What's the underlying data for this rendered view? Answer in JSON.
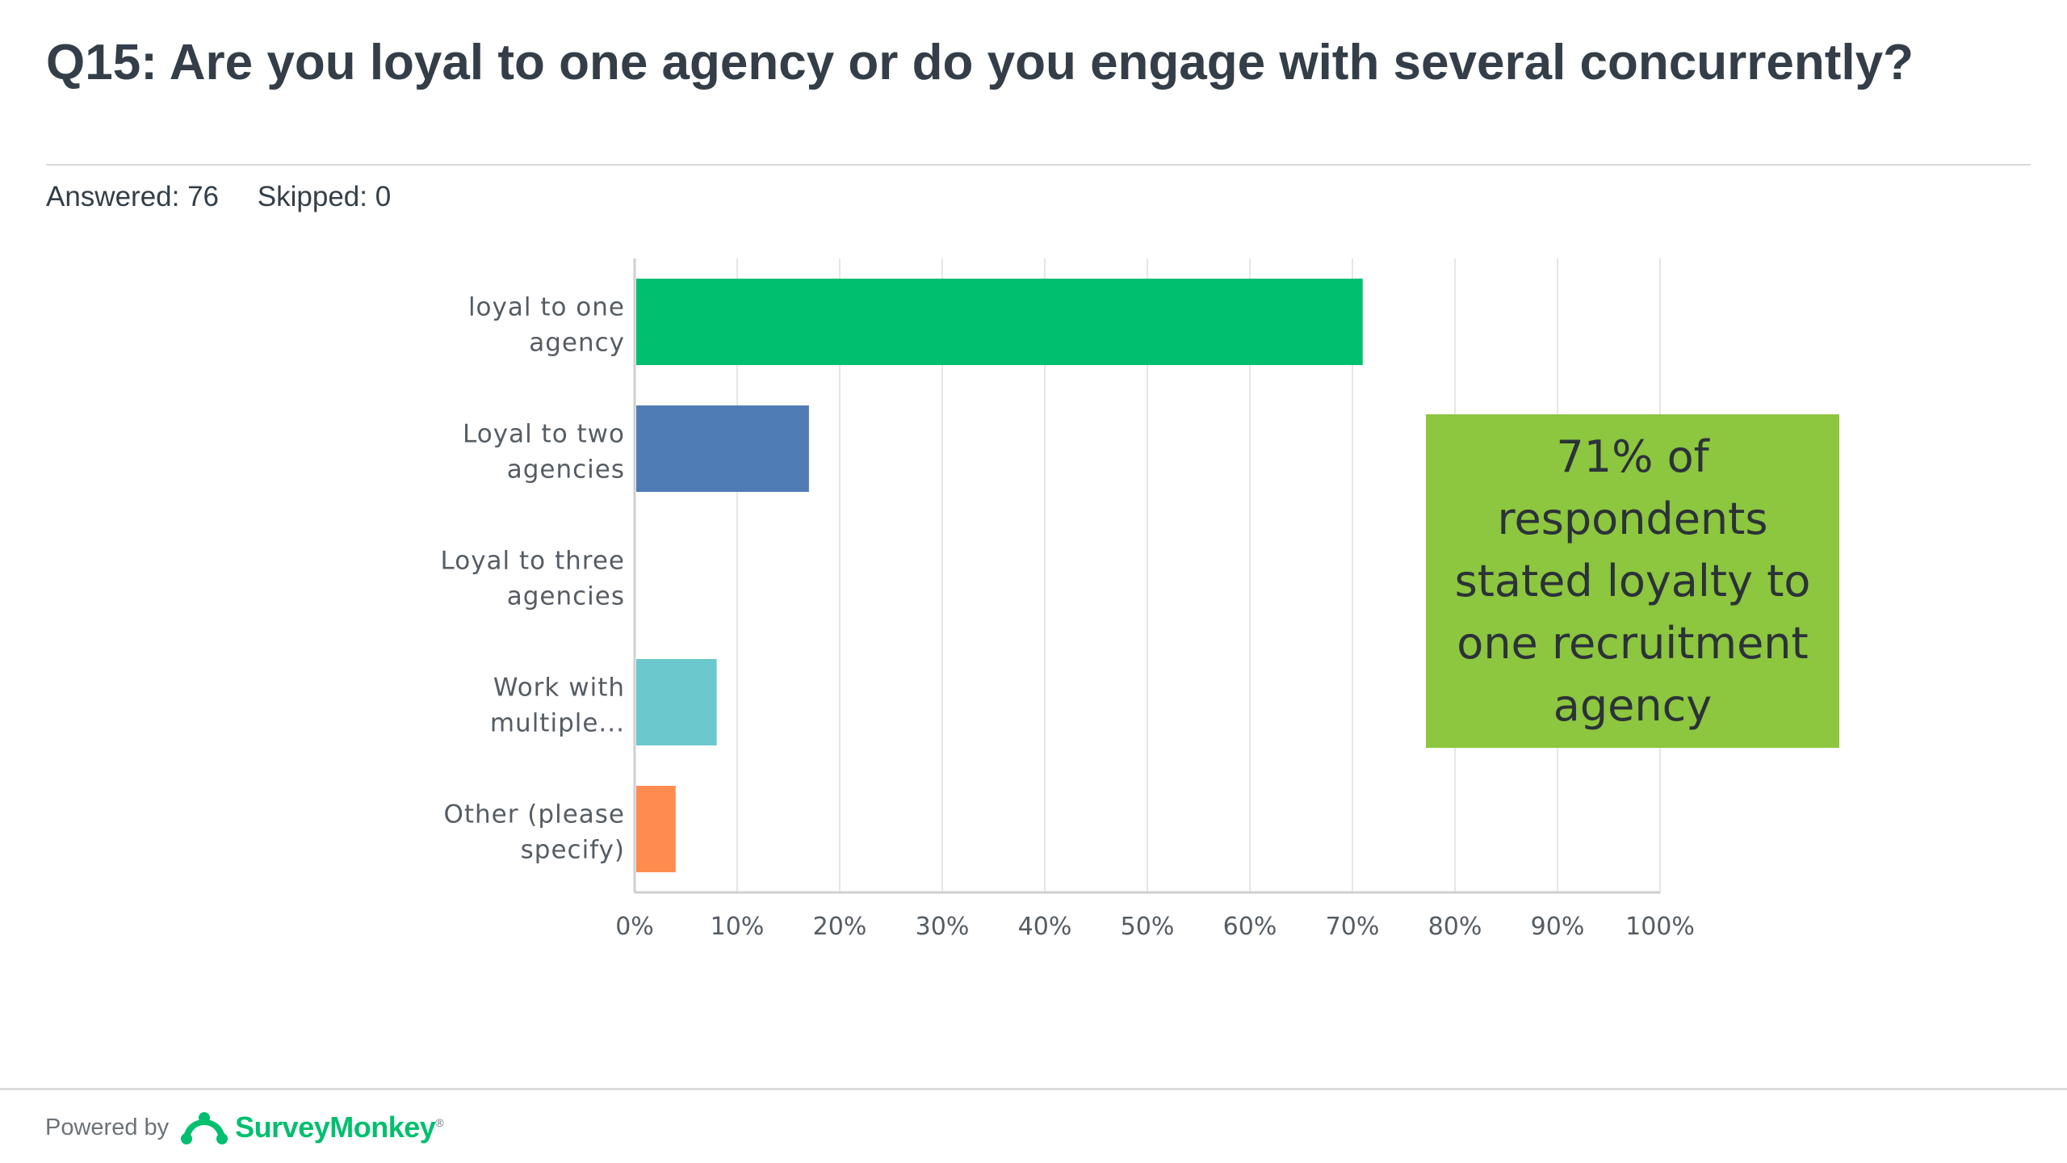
{
  "header": {
    "title": "Q15: Are you loyal to one agency or do you engage with several concurrently?",
    "answered": "Answered: 76",
    "skipped": "Skipped: 0"
  },
  "chart_data": {
    "type": "bar",
    "orientation": "horizontal",
    "categories": [
      [
        "loyal to one",
        "agency"
      ],
      [
        "Loyal to two",
        "agencies"
      ],
      [
        "Loyal to three",
        "agencies"
      ],
      [
        "Work with",
        "multiple..."
      ],
      [
        "Other (please",
        "specify)"
      ]
    ],
    "values": [
      71,
      17,
      0,
      8,
      4
    ],
    "colors": [
      "#00bf6f",
      "#507cb6",
      "#f9be00",
      "#6bc8cd",
      "#ff8b4f"
    ],
    "xlim": [
      0,
      100
    ],
    "xticks": [
      "0%",
      "10%",
      "20%",
      "30%",
      "40%",
      "50%",
      "60%",
      "70%",
      "80%",
      "90%",
      "100%"
    ],
    "grid": true
  },
  "callout": {
    "lines": [
      "71% of",
      "respondents",
      "stated loyalty to",
      "one recruitment",
      "agency"
    ],
    "color": "#8dc63f"
  },
  "footer": {
    "powered_by": "Powered by",
    "brand": "SurveyMonkey",
    "brand_mark": "®",
    "brand_color": "#00bf6f"
  }
}
